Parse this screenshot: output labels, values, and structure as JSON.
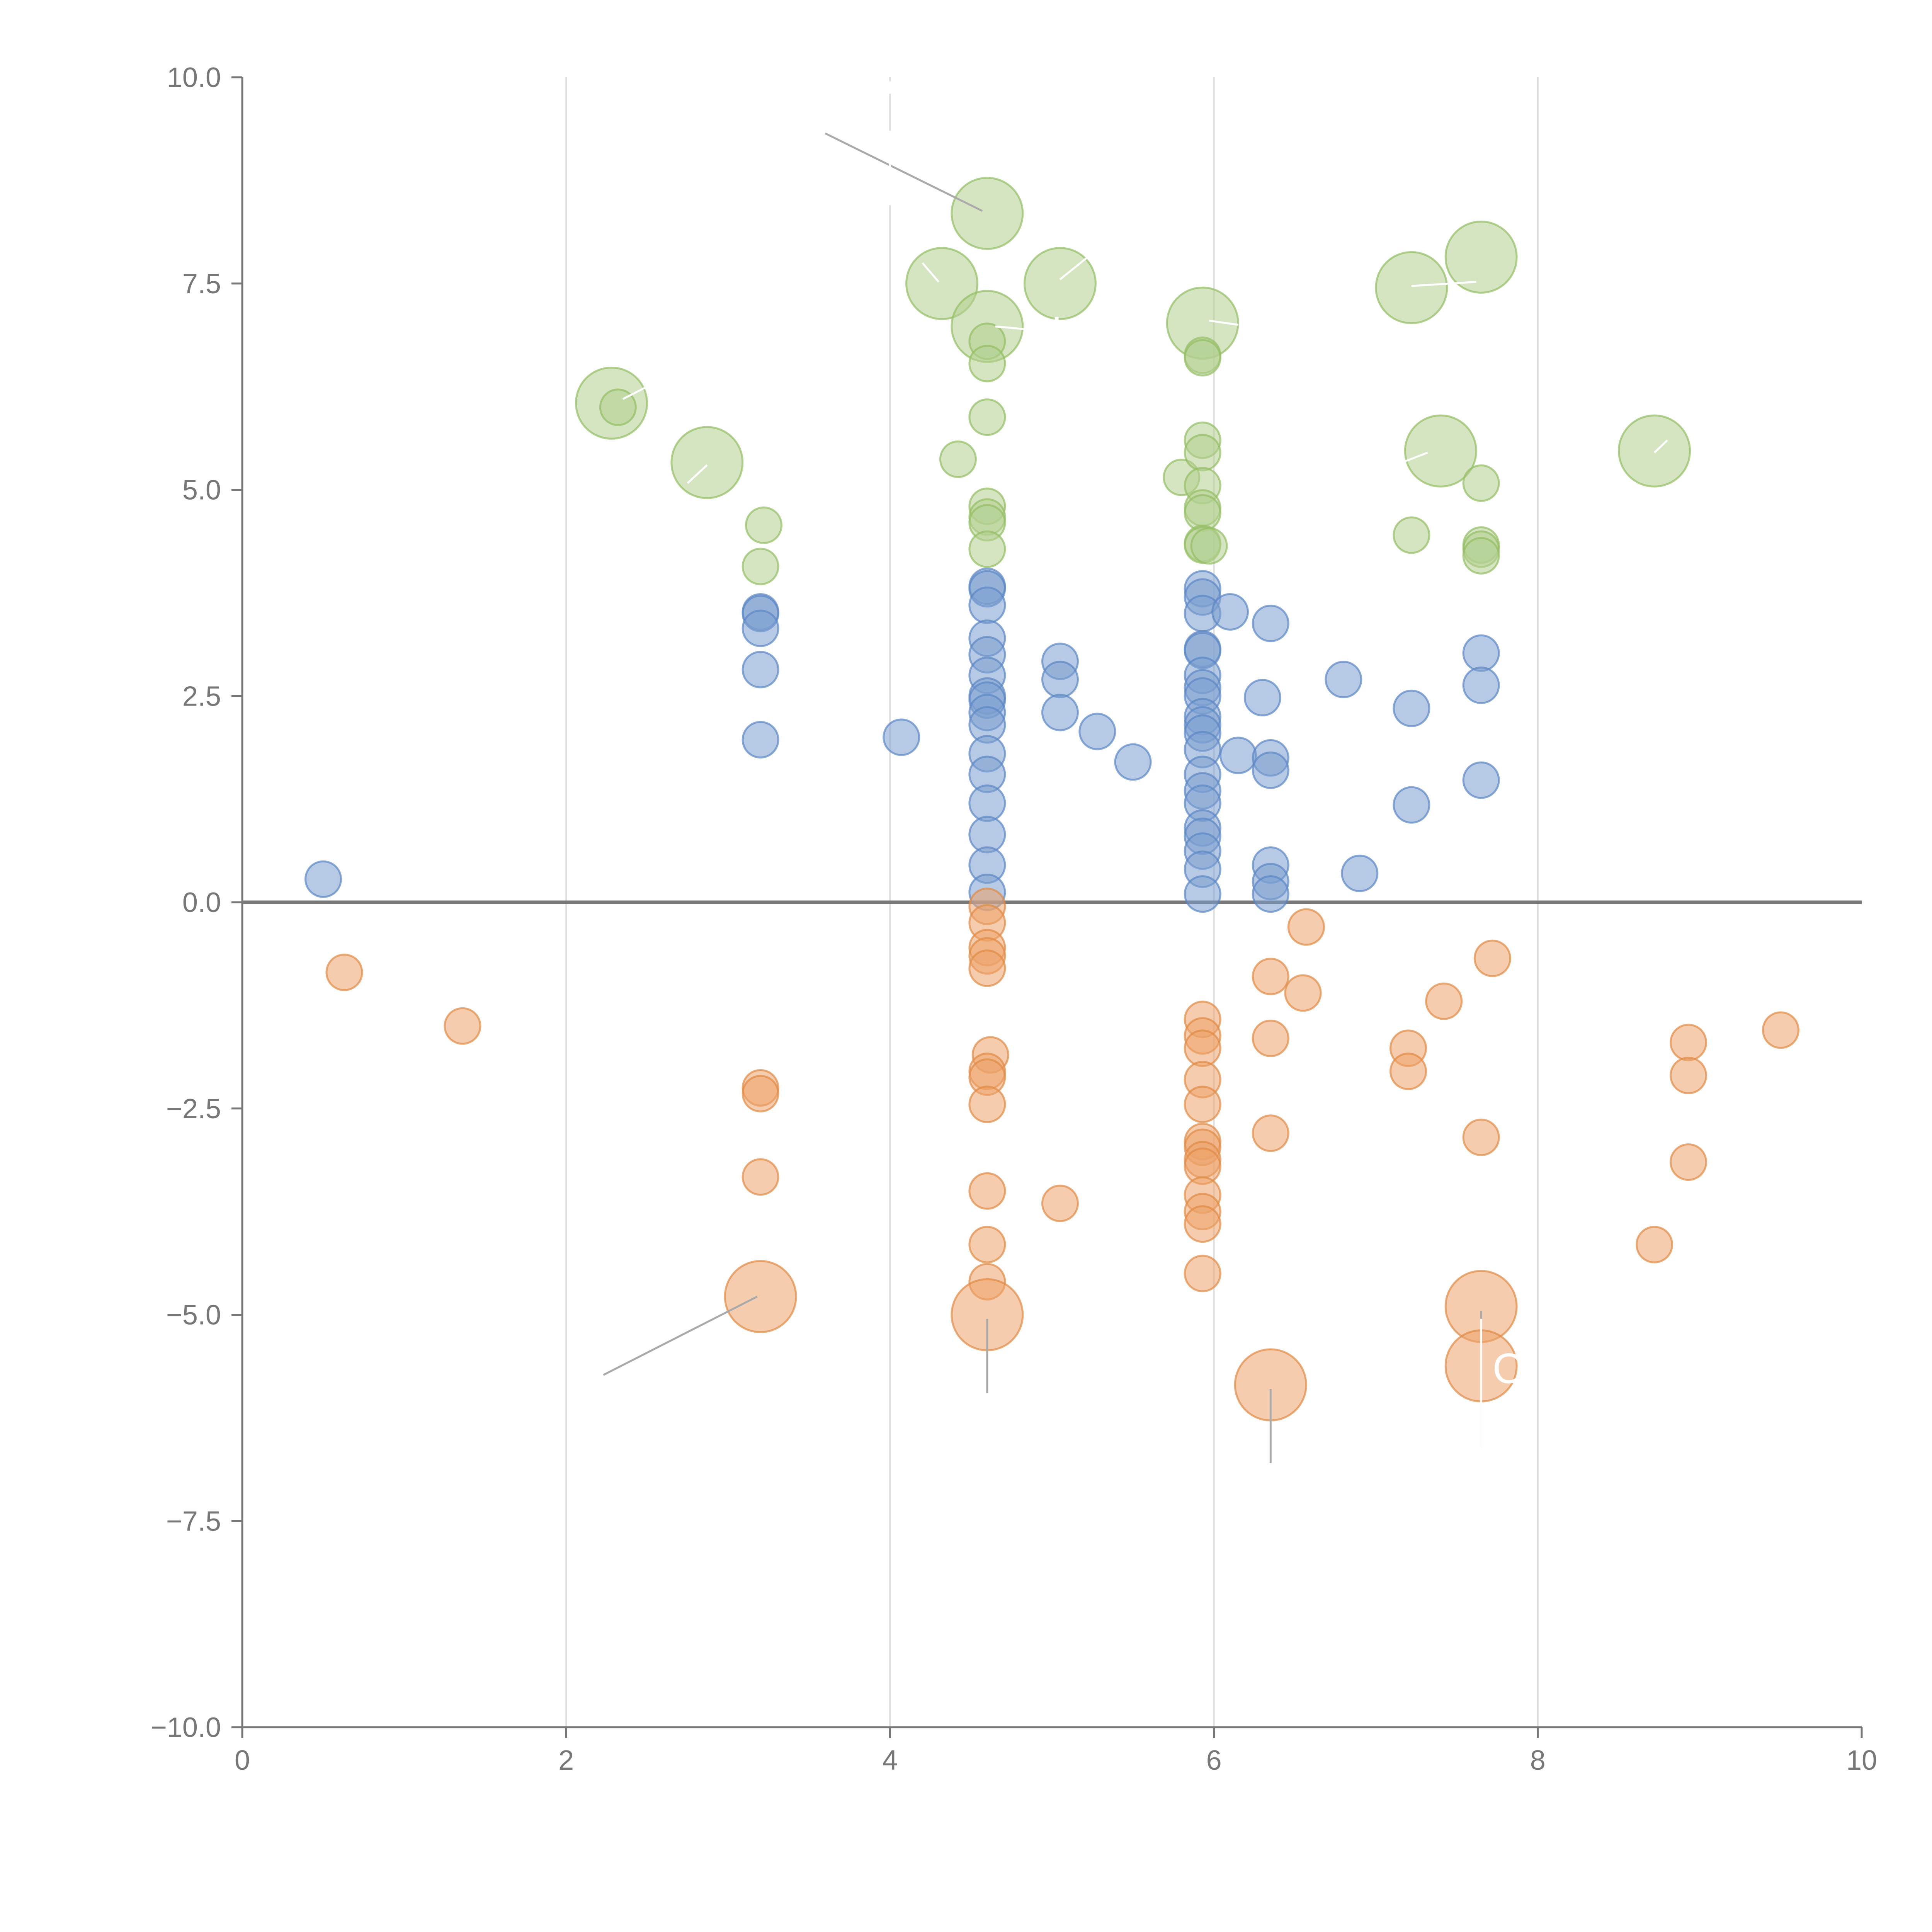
{
  "chart_data": {
    "type": "scatter",
    "title": "",
    "xlabel": "",
    "ylabel": "",
    "xlim": [
      0,
      10
    ],
    "ylim": [
      -10,
      10
    ],
    "grid": "vertical",
    "zero_line": true,
    "x_ticks": [
      "0",
      "2",
      "4",
      "6",
      "8",
      "10"
    ],
    "x_tick_values": [
      0,
      2,
      4,
      6,
      8,
      10
    ],
    "y_ticks": [
      "10.0",
      "7.5",
      "5.0",
      "2.5",
      "0.0",
      "−2.5",
      "−5.0",
      "−7.5",
      "−10.0"
    ],
    "y_tick_values": [
      10,
      7.5,
      5,
      2.5,
      0,
      -2.5,
      -5,
      -7.5,
      -10
    ],
    "colors": {
      "blue": "#7c9fd0",
      "blue_stroke": "#5b86c4",
      "orange": "#eda26a",
      "orange_stroke": "#df8a45",
      "green": "#b3d08f",
      "green_stroke": "#93bd63",
      "axis": "#777777",
      "grid": "#dddddd",
      "leader": "#aaaaaa"
    },
    "series": [
      {
        "name": "blue",
        "color": "#7c9fd0",
        "points": [
          [
            0.5,
            0.28,
            1
          ],
          [
            3.2,
            3.52,
            1
          ],
          [
            3.2,
            3.5,
            1
          ],
          [
            3.2,
            3.32,
            1
          ],
          [
            3.2,
            2.82,
            1
          ],
          [
            3.2,
            1.97,
            1
          ],
          [
            4.07,
            2.0,
            1
          ],
          [
            4.6,
            3.83,
            1
          ],
          [
            4.6,
            3.8,
            1
          ],
          [
            4.6,
            3.6,
            1
          ],
          [
            4.6,
            3.2,
            1
          ],
          [
            4.6,
            3.0,
            1
          ],
          [
            4.6,
            2.75,
            1
          ],
          [
            4.6,
            2.5,
            1
          ],
          [
            4.6,
            2.45,
            1
          ],
          [
            4.6,
            2.3,
            1
          ],
          [
            4.6,
            2.15,
            1
          ],
          [
            4.6,
            1.8,
            1
          ],
          [
            4.6,
            1.55,
            1
          ],
          [
            4.6,
            1.2,
            1
          ],
          [
            4.6,
            0.82,
            1
          ],
          [
            4.6,
            0.45,
            1
          ],
          [
            4.6,
            0.12,
            1
          ],
          [
            5.05,
            2.92,
            1
          ],
          [
            5.05,
            2.7,
            1
          ],
          [
            5.05,
            2.3,
            1
          ],
          [
            5.28,
            2.07,
            1
          ],
          [
            5.5,
            1.7,
            1
          ],
          [
            5.93,
            3.8,
            1
          ],
          [
            5.93,
            3.7,
            1
          ],
          [
            5.93,
            3.5,
            1
          ],
          [
            5.93,
            3.07,
            1
          ],
          [
            5.93,
            3.05,
            1
          ],
          [
            5.93,
            2.75,
            1
          ],
          [
            5.93,
            2.6,
            1
          ],
          [
            5.93,
            2.5,
            1
          ],
          [
            5.93,
            2.25,
            1
          ],
          [
            5.93,
            2.15,
            1
          ],
          [
            5.93,
            2.05,
            1
          ],
          [
            5.93,
            1.85,
            1
          ],
          [
            5.93,
            1.55,
            1
          ],
          [
            5.93,
            1.35,
            1
          ],
          [
            5.93,
            1.2,
            1
          ],
          [
            5.93,
            0.9,
            1
          ],
          [
            5.93,
            0.8,
            1
          ],
          [
            5.93,
            0.62,
            1
          ],
          [
            5.93,
            0.4,
            1
          ],
          [
            5.93,
            0.1,
            1
          ],
          [
            6.1,
            3.52,
            1
          ],
          [
            6.15,
            1.78,
            1
          ],
          [
            6.3,
            2.48,
            1
          ],
          [
            6.35,
            3.38,
            1
          ],
          [
            6.35,
            1.75,
            1
          ],
          [
            6.35,
            1.6,
            1
          ],
          [
            6.35,
            0.45,
            1
          ],
          [
            6.35,
            0.25,
            1
          ],
          [
            6.35,
            0.1,
            1
          ],
          [
            6.8,
            2.7,
            1
          ],
          [
            6.9,
            0.35,
            1
          ],
          [
            7.22,
            2.35,
            1
          ],
          [
            7.22,
            1.18,
            1
          ],
          [
            7.65,
            3.02,
            1
          ],
          [
            7.65,
            2.63,
            1
          ],
          [
            7.65,
            1.48,
            1
          ]
        ]
      },
      {
        "name": "orange",
        "color": "#eda26a",
        "points": [
          [
            0.63,
            -0.85,
            1
          ],
          [
            1.36,
            -1.5,
            1
          ],
          [
            3.2,
            -2.25,
            1
          ],
          [
            3.2,
            -2.32,
            1
          ],
          [
            3.2,
            -3.33,
            1
          ],
          [
            3.2,
            -4.78,
            2
          ],
          [
            4.6,
            -0.05,
            1
          ],
          [
            4.6,
            -0.25,
            1
          ],
          [
            4.6,
            -0.55,
            1
          ],
          [
            4.6,
            -0.65,
            1
          ],
          [
            4.6,
            -0.8,
            1
          ],
          [
            4.62,
            -1.85,
            1
          ],
          [
            4.6,
            -2.05,
            1
          ],
          [
            4.6,
            -2.12,
            1
          ],
          [
            4.6,
            -2.45,
            1
          ],
          [
            4.6,
            -3.5,
            1
          ],
          [
            4.6,
            -4.15,
            1
          ],
          [
            4.6,
            -4.6,
            1
          ],
          [
            4.6,
            -5.0,
            2
          ],
          [
            5.05,
            -3.65,
            1
          ],
          [
            5.93,
            -1.42,
            1
          ],
          [
            5.93,
            -1.62,
            1
          ],
          [
            5.93,
            -1.77,
            1
          ],
          [
            5.93,
            -2.15,
            1
          ],
          [
            5.93,
            -2.45,
            1
          ],
          [
            5.93,
            -2.9,
            1
          ],
          [
            5.93,
            -2.97,
            1
          ],
          [
            5.93,
            -3.12,
            1
          ],
          [
            5.93,
            -3.2,
            1
          ],
          [
            5.93,
            -3.55,
            1
          ],
          [
            5.93,
            -3.75,
            1
          ],
          [
            5.93,
            -3.9,
            1
          ],
          [
            5.93,
            -4.5,
            1
          ],
          [
            6.35,
            -0.9,
            1
          ],
          [
            6.35,
            -1.65,
            1
          ],
          [
            6.35,
            -2.8,
            1
          ],
          [
            6.35,
            -5.85,
            2
          ],
          [
            6.57,
            -0.3,
            1
          ],
          [
            6.55,
            -1.1,
            1
          ],
          [
            7.2,
            -1.77,
            1
          ],
          [
            7.2,
            -2.05,
            1
          ],
          [
            7.42,
            -1.2,
            1
          ],
          [
            7.65,
            -2.85,
            1
          ],
          [
            7.65,
            -4.9,
            2
          ],
          [
            7.65,
            -5.62,
            2
          ],
          [
            7.72,
            -0.68,
            1
          ],
          [
            8.72,
            -4.15,
            1
          ],
          [
            8.93,
            -1.7,
            1
          ],
          [
            8.93,
            -2.1,
            1
          ],
          [
            8.93,
            -3.15,
            1
          ],
          [
            9.5,
            -1.55,
            1
          ]
        ]
      },
      {
        "name": "green",
        "color": "#b3d08f",
        "points": [
          [
            2.28,
            6.05,
            2
          ],
          [
            2.32,
            6.0,
            1
          ],
          [
            2.87,
            5.33,
            2
          ],
          [
            3.22,
            4.57,
            1
          ],
          [
            3.2,
            4.07,
            1
          ],
          [
            4.32,
            7.5,
            2
          ],
          [
            4.42,
            5.37,
            1
          ],
          [
            4.6,
            8.35,
            2
          ],
          [
            4.6,
            6.98,
            2
          ],
          [
            4.6,
            6.8,
            1
          ],
          [
            4.6,
            6.53,
            1
          ],
          [
            4.6,
            5.88,
            1
          ],
          [
            4.6,
            4.8,
            1
          ],
          [
            4.6,
            4.67,
            1
          ],
          [
            4.6,
            4.6,
            1
          ],
          [
            4.6,
            4.28,
            1
          ],
          [
            5.05,
            7.5,
            2
          ],
          [
            5.8,
            5.15,
            1
          ],
          [
            5.93,
            7.02,
            2
          ],
          [
            5.93,
            6.63,
            1
          ],
          [
            5.93,
            6.6,
            1
          ],
          [
            5.93,
            5.6,
            1
          ],
          [
            5.93,
            5.45,
            1
          ],
          [
            5.93,
            5.05,
            1
          ],
          [
            5.93,
            4.78,
            1
          ],
          [
            5.93,
            4.72,
            1
          ],
          [
            5.93,
            4.35,
            1
          ],
          [
            5.93,
            4.33,
            1
          ],
          [
            5.97,
            4.32,
            1
          ],
          [
            7.22,
            7.45,
            2
          ],
          [
            7.22,
            4.45,
            1
          ],
          [
            7.4,
            5.47,
            2
          ],
          [
            7.65,
            7.82,
            2
          ],
          [
            7.65,
            5.08,
            1
          ],
          [
            7.65,
            4.33,
            1
          ],
          [
            7.65,
            4.28,
            1
          ],
          [
            7.65,
            4.2,
            1
          ],
          [
            8.72,
            5.47,
            2
          ]
        ]
      }
    ],
    "annotations": [
      {
        "text": "C",
        "x": 7.72,
        "y": -5.65,
        "line_from": [
          7.65,
          -5.05
        ],
        "line_to": [
          7.65,
          -6.6
        ]
      },
      {
        "text": "l",
        "x": 5.0,
        "y": 6.9,
        "line_from": [
          4.65,
          6.98
        ],
        "line_to": [
          4.98,
          6.92
        ]
      }
    ],
    "leader_lines": [
      {
        "color": "#aaaaaa",
        "from": [
          3.6,
          9.32
        ],
        "to": [
          4.57,
          8.38
        ]
      },
      {
        "color": "#aaaaaa",
        "from": [
          3.18,
          -4.78
        ],
        "to": [
          2.23,
          -5.73
        ]
      },
      {
        "color": "#aaaaaa",
        "from": [
          4.6,
          -5.05
        ],
        "to": [
          4.6,
          -5.95
        ]
      },
      {
        "color": "#aaaaaa",
        "from": [
          6.35,
          -5.9
        ],
        "to": [
          6.35,
          -6.8
        ]
      },
      {
        "color": "#aaaaaa",
        "from": [
          7.65,
          -4.95
        ],
        "to": [
          7.65,
          -6.6
        ]
      },
      {
        "color": "#ffffff",
        "from": [
          4.0,
          9.95
        ],
        "to": [
          4.0,
          9.8
        ]
      },
      {
        "color": "#ffffff",
        "from": [
          4.0,
          9.35
        ],
        "to": [
          4.0,
          8.45
        ]
      },
      {
        "color": "#ffffff",
        "from": [
          4.2,
          7.75
        ],
        "to": [
          4.3,
          7.52
        ]
      },
      {
        "color": "#ffffff",
        "from": [
          5.05,
          7.55
        ],
        "to": [
          5.22,
          7.82
        ]
      },
      {
        "color": "#ffffff",
        "from": [
          5.97,
          7.05
        ],
        "to": [
          6.15,
          7.0
        ]
      },
      {
        "color": "#ffffff",
        "from": [
          7.22,
          7.47
        ],
        "to": [
          7.62,
          7.52
        ]
      },
      {
        "color": "#ffffff",
        "from": [
          7.32,
          5.45
        ],
        "to": [
          7.12,
          5.3
        ]
      },
      {
        "color": "#ffffff",
        "from": [
          8.8,
          5.6
        ],
        "to": [
          8.72,
          5.45
        ]
      },
      {
        "color": "#ffffff",
        "from": [
          2.35,
          6.1
        ],
        "to": [
          2.5,
          6.25
        ]
      },
      {
        "color": "#ffffff",
        "from": [
          2.87,
          5.3
        ],
        "to": [
          2.75,
          5.08
        ]
      }
    ]
  }
}
